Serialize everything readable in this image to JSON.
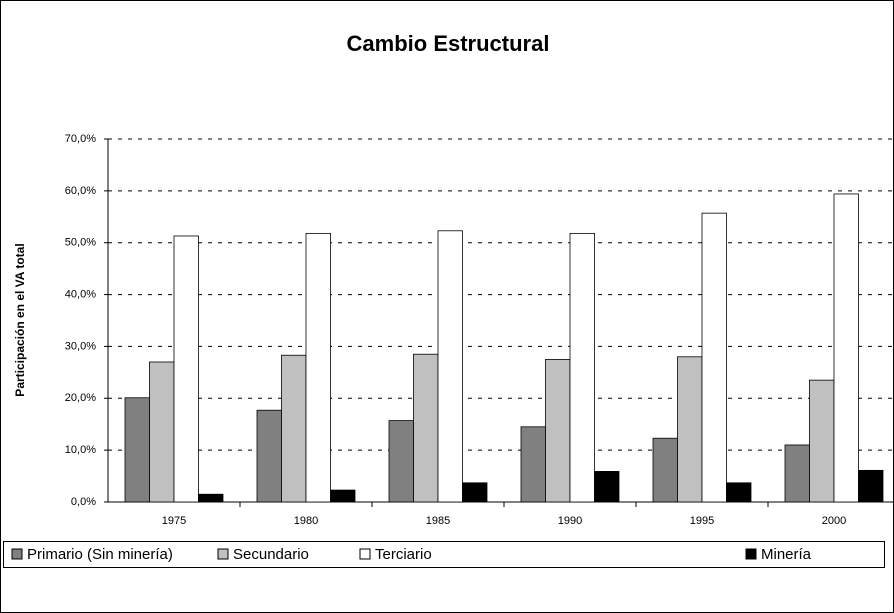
{
  "chart_data": {
    "type": "bar",
    "title": "Cambio Estructural",
    "y_label": "Participación en el VA total",
    "categories": [
      "1975",
      "1980",
      "1985",
      "1990",
      "1995",
      "2000"
    ],
    "series": [
      {
        "name": "Primario (Sin minería)",
        "color": "#808080",
        "values": [
          20.1,
          17.7,
          15.7,
          14.5,
          12.3,
          11.0
        ]
      },
      {
        "name": "Secundario",
        "color": "#c0c0c0",
        "values": [
          27.0,
          28.3,
          28.5,
          27.5,
          28.0,
          23.5
        ]
      },
      {
        "name": "Terciario",
        "color": "#ffffff",
        "values": [
          51.3,
          51.8,
          52.3,
          51.8,
          55.7,
          59.4
        ]
      },
      {
        "name": "Minería",
        "color": "#000000",
        "values": [
          1.5,
          2.3,
          3.7,
          5.9,
          3.7,
          6.1
        ]
      }
    ],
    "ylim": [
      0,
      70
    ],
    "yticks": [
      {
        "value": 0,
        "label": "0,0%"
      },
      {
        "value": 10,
        "label": "10,0%"
      },
      {
        "value": 20,
        "label": "20,0%"
      },
      {
        "value": 30,
        "label": "30,0%"
      },
      {
        "value": 40,
        "label": "40,0%"
      },
      {
        "value": 50,
        "label": "50,0%"
      },
      {
        "value": 60,
        "label": "60,0%"
      },
      {
        "value": 70,
        "label": "70,0%"
      }
    ],
    "grid": true,
    "legend": "bottom"
  }
}
